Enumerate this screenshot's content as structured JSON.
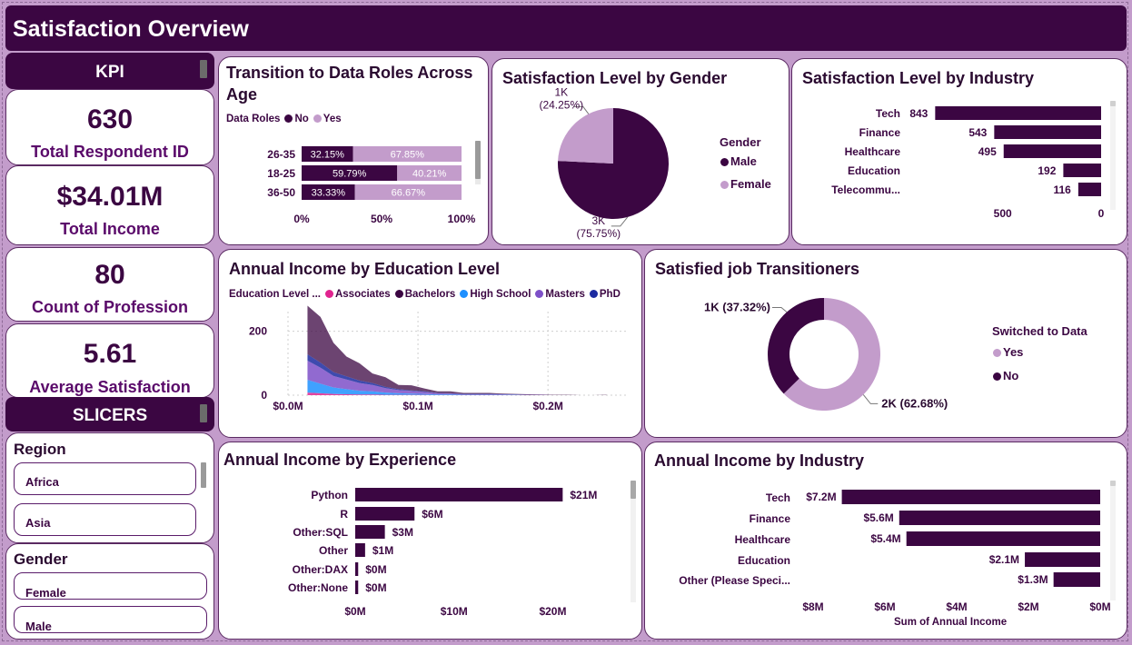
{
  "title": "Satisfaction Overview",
  "kpi_header": "KPI",
  "kpis": [
    {
      "value": "630",
      "label": "Total Respondent ID"
    },
    {
      "value": "$34.01M",
      "label": "Total Income"
    },
    {
      "value": "80",
      "label": "Count of Profession"
    },
    {
      "value": "5.61",
      "label": "Average Satisfaction"
    }
  ],
  "slicers_header": "SLICERS",
  "region_slicer": {
    "title": "Region",
    "items": [
      "Africa",
      "Asia"
    ]
  },
  "gender_slicer": {
    "title": "Gender",
    "items": [
      "Female",
      "Male"
    ]
  },
  "colors": {
    "dark": "#3b0642",
    "light": "#c39ccb",
    "associates": "#e0248f",
    "bachelors": "#3b0642",
    "highschool": "#1e90ff",
    "masters": "#7e50c8",
    "phd": "#1c2aa0"
  },
  "charts": {
    "transition": {
      "title": "Transition to Data Roles Across Age",
      "legend_title": "Data Roles",
      "legend": [
        "No",
        "Yes"
      ],
      "chart_data": {
        "type": "bar",
        "categories": [
          "26-35",
          "18-25",
          "36-50"
        ],
        "series": [
          {
            "name": "No",
            "values": [
              32.15,
              59.79,
              33.33
            ],
            "labels": [
              "32.15%",
              "59.79%",
              "33.33%"
            ]
          },
          {
            "name": "Yes",
            "values": [
              67.85,
              40.21,
              66.67
            ],
            "labels": [
              "67.85%",
              "40.21%",
              "66.67%"
            ]
          }
        ],
        "x_ticks": [
          "0%",
          "50%",
          "100%"
        ],
        "xlim": [
          0,
          100
        ]
      }
    },
    "gender": {
      "title": "Satisfaction Level by Gender",
      "legend_title": "Gender",
      "legend": [
        "Male",
        "Female"
      ],
      "chart_data": {
        "type": "pie",
        "categories": [
          "Male",
          "Female"
        ],
        "values": [
          75.75,
          24.25
        ],
        "labels": [
          [
            "3K",
            "(75.75%)"
          ],
          [
            "1K",
            "(24.25%)"
          ]
        ]
      }
    },
    "industry_sat": {
      "title": "Satisfaction Level by Industry",
      "chart_data": {
        "type": "bar",
        "categories": [
          "Tech",
          "Finance",
          "Healthcare",
          "Education",
          "Telecommu..."
        ],
        "values": [
          843,
          543,
          495,
          192,
          116
        ],
        "labels": [
          "843",
          "543",
          "495",
          "192",
          "116"
        ],
        "x_ticks": [
          "500",
          "0"
        ],
        "xlim": [
          900,
          0
        ]
      }
    },
    "education": {
      "title": "Annual Income by Education Level",
      "legend_title": "Education Level ...",
      "legend": [
        "Associates",
        "Bachelors",
        "High School",
        "Masters",
        "PhD"
      ],
      "chart_data": {
        "type": "area",
        "x": [
          0.015,
          0.025,
          0.035,
          0.045,
          0.055,
          0.065,
          0.075,
          0.085,
          0.095,
          0.105,
          0.115,
          0.125,
          0.135,
          0.145,
          0.155,
          0.165,
          0.175,
          0.185,
          0.195,
          0.205,
          0.215,
          0.225,
          0.235,
          0.245
        ],
        "series": [
          {
            "name": "Associates",
            "values": [
              8,
              6,
              4,
              3,
              2,
              2,
              1,
              1,
              1,
              1,
              0,
              0,
              0,
              0,
              0,
              0,
              0,
              0,
              0,
              0,
              0,
              0,
              0,
              0
            ]
          },
          {
            "name": "High School",
            "values": [
              40,
              30,
              20,
              16,
              12,
              10,
              7,
              5,
              4,
              3,
              2,
              2,
              1,
              1,
              1,
              1,
              1,
              0,
              0,
              0,
              0,
              0,
              0,
              0
            ]
          },
          {
            "name": "Masters",
            "values": [
              60,
              50,
              36,
              30,
              24,
              20,
              14,
              10,
              8,
              6,
              4,
              3,
              2,
              2,
              2,
              2,
              1,
              1,
              1,
              0,
              0,
              0,
              0,
              0
            ]
          },
          {
            "name": "PhD",
            "values": [
              20,
              16,
              12,
              10,
              8,
              6,
              4,
              3,
              2,
              2,
              1,
              1,
              1,
              1,
              1,
              0,
              0,
              0,
              0,
              0,
              0,
              0,
              0,
              0
            ]
          },
          {
            "name": "Bachelors",
            "values": [
              152,
              143,
              92,
              62,
              54,
              30,
              30,
              13,
              16,
              9,
              5,
              6,
              3,
              3,
              3,
              2,
              2,
              2,
              1,
              1,
              1,
              0,
              0,
              1
            ]
          }
        ],
        "x_ticks": [
          "$0.0M",
          "$0.1M",
          "$0.2M"
        ],
        "x_tick_values": [
          0,
          0.1,
          0.2
        ],
        "y_ticks": [
          "0",
          "200"
        ],
        "y_tick_values": [
          0,
          200
        ],
        "xlim": [
          0,
          0.26
        ],
        "ylim": [
          0,
          290
        ]
      }
    },
    "switched": {
      "title": "Satisfied job Transitioners",
      "legend_title": "Switched to Data",
      "legend": [
        "Yes",
        "No"
      ],
      "chart_data": {
        "type": "pie",
        "categories": [
          "Yes",
          "No"
        ],
        "values": [
          62.68,
          37.32
        ],
        "labels": [
          "2K (62.68%)",
          "1K (37.32%)"
        ]
      }
    },
    "experience": {
      "title": "Annual Income by Experience",
      "chart_data": {
        "type": "bar",
        "categories": [
          "Python",
          "R",
          "Other:SQL",
          "Other",
          "Other:DAX",
          "Other:None"
        ],
        "values": [
          21,
          6,
          3,
          1,
          0.3,
          0.3
        ],
        "labels": [
          "$21M",
          "$6M",
          "$3M",
          "$1M",
          "$0M",
          "$0M"
        ],
        "x_ticks": [
          "$0M",
          "$10M",
          "$20M"
        ],
        "x_tick_values": [
          0,
          10,
          20
        ],
        "xlim": [
          0,
          20.6
        ]
      }
    },
    "industry_income": {
      "title": "Annual Income by Industry",
      "xlabel": "Sum of Annual Income",
      "chart_data": {
        "type": "bar",
        "categories": [
          "Tech",
          "Finance",
          "Healthcare",
          "Education",
          "Other (Please Speci..."
        ],
        "values": [
          7.2,
          5.6,
          5.4,
          2.1,
          1.3
        ],
        "labels": [
          "$7.2M",
          "$5.6M",
          "$5.4M",
          "$2.1M",
          "$1.3M"
        ],
        "x_ticks": [
          "$8M",
          "$6M",
          "$4M",
          "$2M",
          "$0M"
        ],
        "x_tick_values": [
          8,
          6,
          4,
          2,
          0
        ],
        "xlim": [
          8,
          0
        ]
      }
    }
  }
}
